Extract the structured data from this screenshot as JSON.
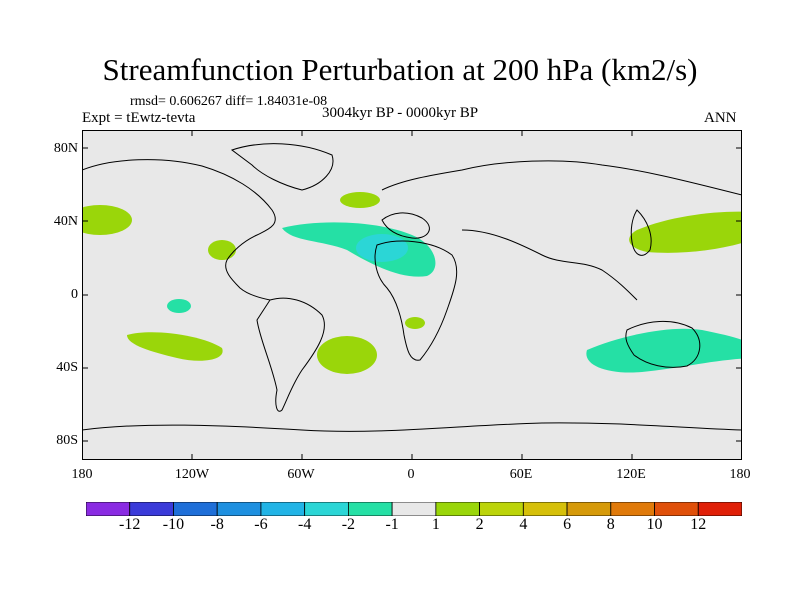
{
  "title": "Streamfunction Perturbation at 200 hPa (km2/s)",
  "stats": "rmsd= 0.606267 diff= 1.84031e-08",
  "experiment": "Expt = tEwtz-tevta",
  "period": "3004kyr BP - 0000kyr BP",
  "season": "ANN",
  "lat_ticks": [
    "80N",
    "40N",
    "0",
    "40S",
    "80S"
  ],
  "lon_ticks": [
    "180",
    "120W",
    "60W",
    "0",
    "60E",
    "120E",
    "180"
  ],
  "colorbar": {
    "colors": [
      "#8a2be2",
      "#3b3bd9",
      "#1f6fd8",
      "#1e90e0",
      "#22b4e6",
      "#2bd6d6",
      "#25e0a5",
      "#e8e8e8",
      "#9ad60a",
      "#bcd40a",
      "#d6c00a",
      "#d69a0a",
      "#e07a0a",
      "#e0500a",
      "#e02008"
    ],
    "labels": [
      "-12",
      "-10",
      "-8",
      "-6",
      "-4",
      "-2",
      "-1",
      "1",
      "2",
      "4",
      "6",
      "8",
      "10",
      "12"
    ]
  },
  "colors": {
    "ocean": "#e8e8e8",
    "positive_1_2": "#9ad60a",
    "negative_1_2": "#25e0a5",
    "negative_2_4": "#2bd6d6"
  }
}
